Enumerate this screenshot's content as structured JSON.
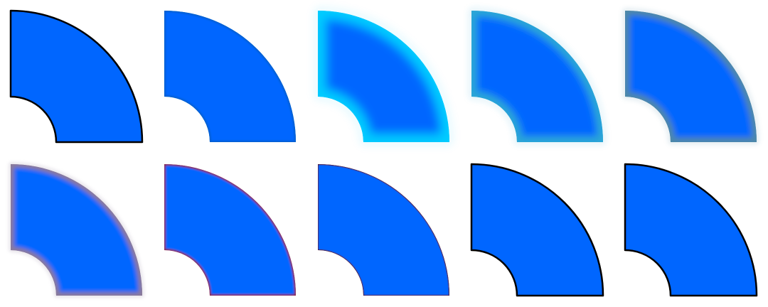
{
  "shape": "quarter-annulus-sector",
  "fill_color": "#0066ff",
  "tiles": [
    {
      "row": 1,
      "col": 1,
      "edge_color": "#000000",
      "blur": 0,
      "edge_style": "crisp-outline"
    },
    {
      "row": 1,
      "col": 2,
      "edge_color": "#005ecc",
      "blur": 1.2,
      "edge_style": "soft-outline"
    },
    {
      "row": 1,
      "col": 3,
      "edge_color": "#00ccff",
      "blur": 7,
      "edge_style": "glow"
    },
    {
      "row": 1,
      "col": 4,
      "edge_color": "#2ca6d6",
      "blur": 5,
      "edge_style": "glow"
    },
    {
      "row": 1,
      "col": 5,
      "edge_color": "#4d88a8",
      "blur": 4,
      "edge_style": "glow"
    },
    {
      "row": 2,
      "col": 1,
      "edge_color": "#8a7a9a",
      "blur": 3,
      "edge_style": "glow"
    },
    {
      "row": 2,
      "col": 2,
      "edge_color": "#8a2a4a",
      "blur": 1.2,
      "edge_style": "soft-outline"
    },
    {
      "row": 2,
      "col": 3,
      "edge_color": "#4a1420",
      "blur": 0.4,
      "edge_style": "crisp-outline"
    },
    {
      "row": 2,
      "col": 4,
      "edge_color": "#000000",
      "blur": 0,
      "edge_style": "crisp-outline"
    },
    {
      "row": 2,
      "col": 5,
      "edge_color": "#000000",
      "blur": 0,
      "edge_style": "crisp-outline"
    }
  ]
}
